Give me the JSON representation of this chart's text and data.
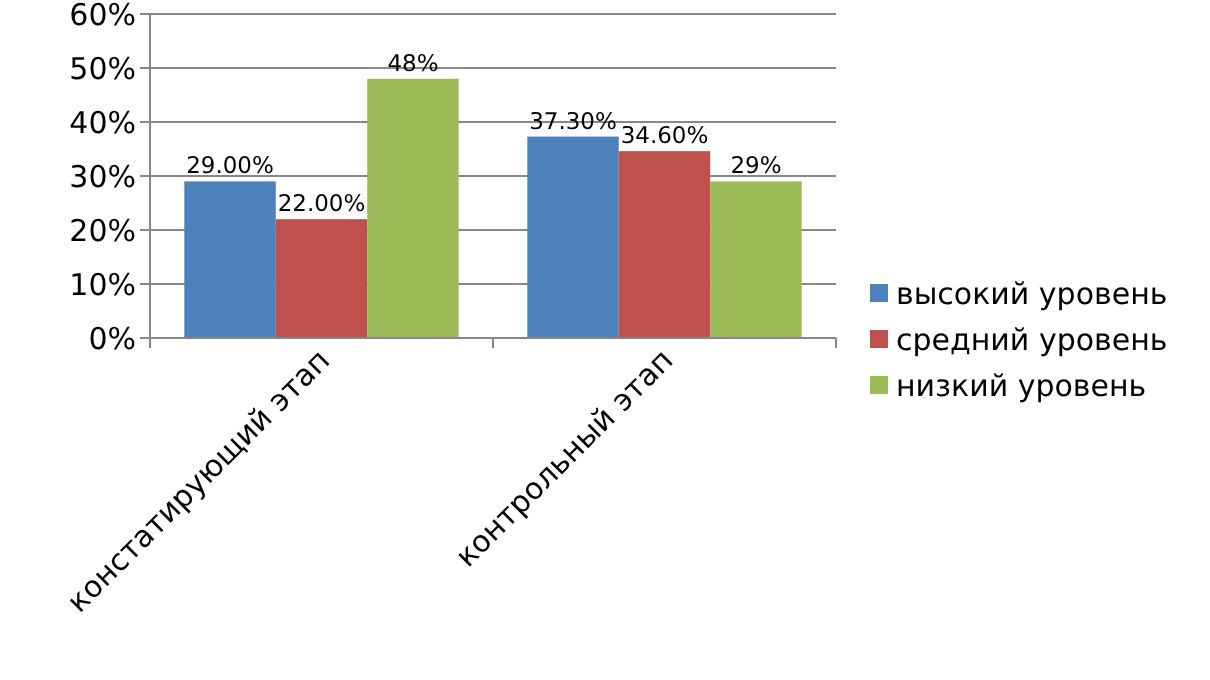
{
  "chart_data": {
    "type": "bar",
    "categories": [
      "констатирующий этап",
      "контрольный этап"
    ],
    "series": [
      {
        "name": "высокий уровень",
        "color": "#4f81bd",
        "values": [
          29,
          37.3
        ],
        "value_labels": [
          "29.00%",
          "37.30%"
        ]
      },
      {
        "name": "средний уровень",
        "color": "#c0504d",
        "values": [
          22,
          34.6
        ],
        "value_labels": [
          "22.00%",
          "34.60%"
        ]
      },
      {
        "name": "низкий уровень",
        "color": "#9bbb59",
        "values": [
          48,
          29
        ],
        "value_labels": [
          "48%",
          "29%"
        ]
      }
    ],
    "ylim": [
      0,
      60
    ],
    "yticks": [
      {
        "value": 0,
        "label": "0%"
      },
      {
        "value": 10,
        "label": "10%"
      },
      {
        "value": 20,
        "label": "20%"
      },
      {
        "value": 30,
        "label": "30%"
      },
      {
        "value": 40,
        "label": "40%"
      },
      {
        "value": 50,
        "label": "50%"
      },
      {
        "value": 60,
        "label": "60%"
      }
    ],
    "grid": "y",
    "legend": "right"
  }
}
